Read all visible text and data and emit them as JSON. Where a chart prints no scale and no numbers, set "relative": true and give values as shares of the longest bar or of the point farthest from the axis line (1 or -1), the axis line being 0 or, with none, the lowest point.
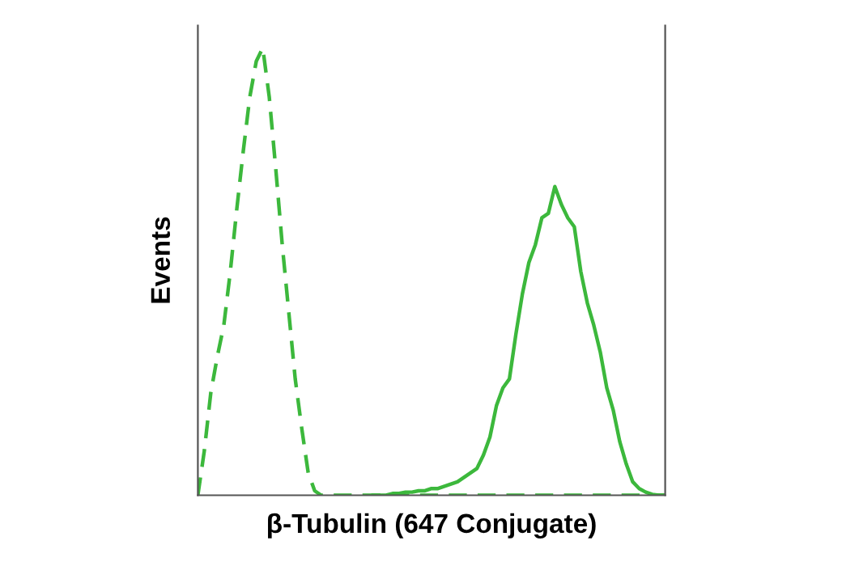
{
  "chart_data": {
    "type": "line",
    "relative": true,
    "xlabel": "β-Tubulin (647 Conjugate)",
    "ylabel": "Events",
    "marker": "none",
    "categories": [
      null,
      null,
      null,
      null,
      null,
      null,
      null,
      null,
      null,
      null,
      null,
      null,
      null,
      null,
      null,
      null,
      null,
      null,
      null,
      null,
      null,
      null,
      null,
      null,
      null,
      null,
      null,
      null,
      null,
      null,
      null,
      null,
      null,
      null,
      null,
      null,
      null,
      null,
      null,
      null,
      null,
      null,
      null,
      null,
      null,
      null,
      null,
      null,
      null,
      null,
      null,
      null,
      null,
      null,
      null,
      null,
      null,
      null,
      null,
      null,
      null,
      null,
      null,
      null,
      null,
      null,
      null,
      null,
      null,
      null,
      null,
      null,
      null
    ],
    "series": [
      {
        "color": "#3cb83c",
        "line_style": "dashed",
        "values": [
          0,
          0.1,
          0.23,
          0.31,
          0.38,
          0.5,
          0.64,
          0.77,
          0.89,
          0.97,
          1.0,
          0.89,
          0.73,
          0.56,
          0.41,
          0.26,
          0.15,
          0.05,
          0.01,
          0,
          0,
          0,
          0,
          0,
          0,
          0,
          0,
          0,
          0,
          0,
          0,
          0,
          0,
          0,
          0,
          0,
          0,
          0,
          0,
          0,
          0,
          0,
          0,
          0,
          0,
          0,
          0,
          0,
          0,
          0,
          0,
          0,
          0,
          0,
          0,
          0,
          0,
          0,
          0,
          0,
          0,
          0,
          0,
          0,
          0,
          0,
          0,
          0,
          0,
          0,
          0,
          0,
          0
        ]
      },
      {
        "color": "#3cb83c",
        "line_style": "solid",
        "values": [
          null,
          null,
          null,
          null,
          null,
          null,
          null,
          null,
          null,
          null,
          null,
          null,
          null,
          null,
          null,
          null,
          null,
          null,
          null,
          null,
          null,
          null,
          null,
          null,
          null,
          null,
          null,
          0,
          0,
          0,
          0.004,
          0.004,
          0.007,
          0.007,
          0.01,
          0.01,
          0.015,
          0.015,
          0.02,
          0.025,
          0.03,
          0.04,
          0.05,
          0.06,
          0.09,
          0.13,
          0.2,
          0.24,
          0.26,
          0.36,
          0.45,
          0.52,
          0.56,
          0.62,
          0.63,
          0.69,
          0.65,
          0.62,
          0.6,
          0.5,
          0.43,
          0.38,
          0.32,
          0.24,
          0.19,
          0.12,
          0.07,
          0.03,
          0.015,
          0.007,
          0.002,
          0,
          0
        ]
      }
    ]
  }
}
